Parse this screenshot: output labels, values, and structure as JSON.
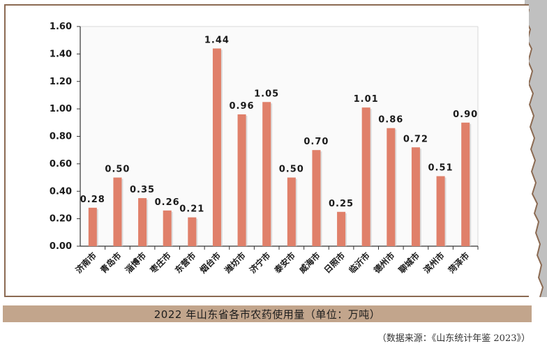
{
  "chart_data": {
    "type": "bar",
    "title": "2022 年山东省各市农药使用量（单位：万吨）",
    "categories": [
      "济南市",
      "青岛市",
      "淄博市",
      "枣庄市",
      "东营市",
      "烟台市",
      "潍坊市",
      "济宁市",
      "泰安市",
      "威海市",
      "日照市",
      "临沂市",
      "德州市",
      "聊城市",
      "滨州市",
      "菏泽市"
    ],
    "values": [
      0.28,
      0.5,
      0.35,
      0.26,
      0.21,
      1.44,
      0.96,
      1.05,
      0.5,
      0.7,
      0.25,
      1.01,
      0.86,
      0.72,
      0.51,
      0.9
    ],
    "value_labels": [
      "0.28",
      "0.50",
      "0.35",
      "0.26",
      "0.21",
      "1.44",
      "0.96",
      "1.05",
      "0.50",
      "0.70",
      "0.25",
      "1.01",
      "0.86",
      "0.72",
      "0.51",
      "0.90"
    ],
    "y_ticks": [
      "0.00",
      "0.20",
      "0.40",
      "0.60",
      "0.80",
      "1.00",
      "1.20",
      "1.40",
      "1.60"
    ],
    "ylim": [
      0,
      1.6
    ],
    "xlabel": "",
    "ylabel": "",
    "grid": false,
    "bar_color": "#e0806a",
    "legend": "none"
  },
  "caption": "2022 年山东省各市农药使用量（单位：万吨）",
  "source": "（数据来源：《山东统计年鉴 2023》）",
  "colors": {
    "frame": "#8b6a52",
    "caption_bg": "#c2a58c",
    "bar": "#e0806a",
    "axis": "#333333"
  }
}
